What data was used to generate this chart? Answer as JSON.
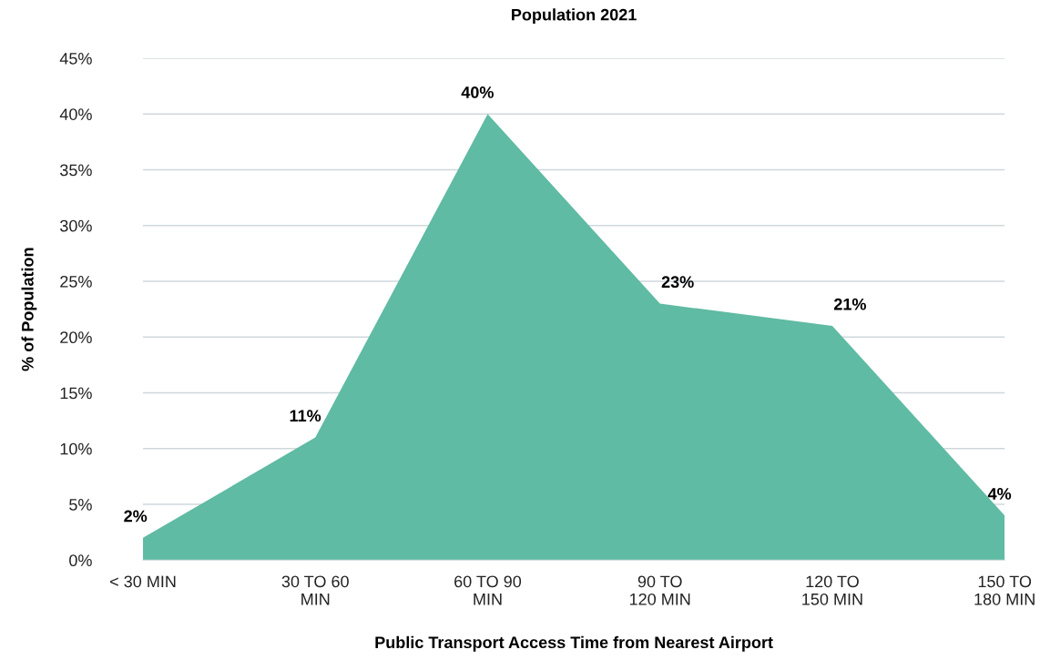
{
  "chart_data": {
    "type": "area",
    "title": "Population 2021",
    "xlabel": "Public Transport Access Time from Nearest Airport",
    "ylabel": "% of Population",
    "categories": [
      "< 30 MIN",
      "30 TO 60\nMIN",
      "60 TO 90\nMIN",
      "90 TO\n120 MIN",
      "120 TO\n150 MIN",
      "150 TO\n180 MIN"
    ],
    "series": [
      {
        "color": "#5fbba3",
        "values": [
          2,
          11,
          40,
          23,
          21,
          4
        ],
        "value_labels": [
          "2%",
          "11%",
          "40%",
          "23%",
          "21%",
          "4%"
        ]
      }
    ],
    "ylim": [
      0,
      45
    ],
    "yticks": [
      {
        "value": 0,
        "label": "0%"
      },
      {
        "value": 5,
        "label": "5%"
      },
      {
        "value": 10,
        "label": "10%"
      },
      {
        "value": 15,
        "label": "15%"
      },
      {
        "value": 20,
        "label": "20%"
      },
      {
        "value": 25,
        "label": "25%"
      },
      {
        "value": 30,
        "label": "30%"
      },
      {
        "value": 35,
        "label": "35%"
      },
      {
        "value": 40,
        "label": "40%"
      },
      {
        "value": 45,
        "label": "45%"
      }
    ],
    "grid": "y"
  }
}
